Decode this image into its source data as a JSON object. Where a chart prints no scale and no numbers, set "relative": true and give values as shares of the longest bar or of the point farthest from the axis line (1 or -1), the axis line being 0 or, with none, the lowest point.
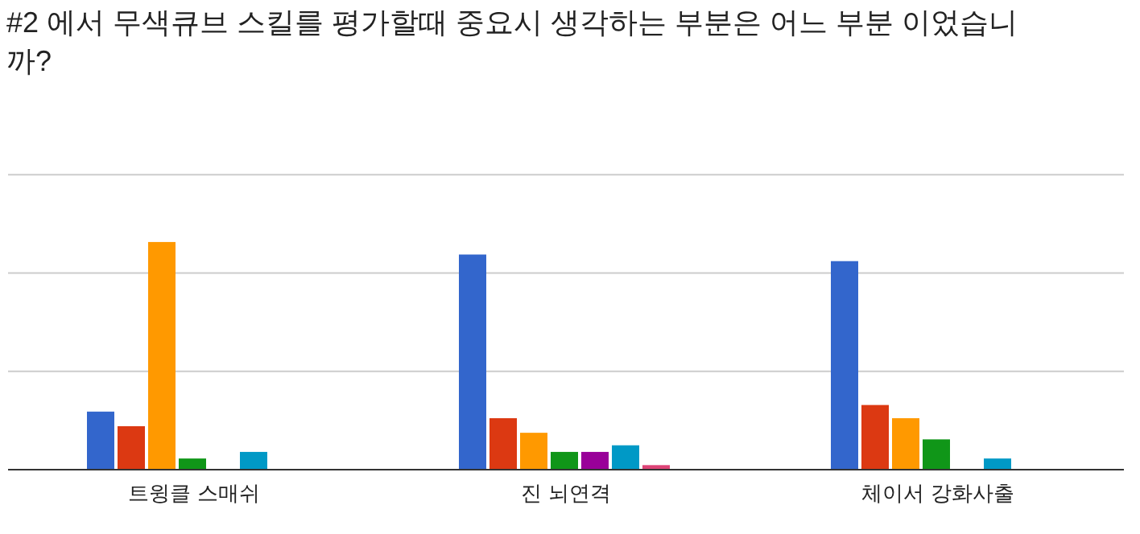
{
  "chart_data": {
    "type": "bar",
    "title": "#2 에서 무색큐브 스킬를 평가할때 중요시 생각하는 부분은 어느 부분 이었습니까?",
    "categories": [
      "트윙클 스매쉬",
      "진 뇌연격",
      "체이서 강화사출"
    ],
    "relative": true,
    "ref_lines": [
      {
        "axis": "y",
        "value": 0.432,
        "color": "#cccccc"
      },
      {
        "axis": "y",
        "value": 0.864,
        "color": "#cccccc"
      },
      {
        "axis": "y",
        "value": 1.296,
        "color": "#cccccc"
      }
    ],
    "series": [
      {
        "color": "#3366cc",
        "values": [
          0.255,
          0.945,
          0.916
        ]
      },
      {
        "color": "#dc3912",
        "values": [
          0.191,
          0.226,
          0.284
        ]
      },
      {
        "color": "#ff9900",
        "values": [
          1,
          0.162,
          0.226
        ]
      },
      {
        "color": "#109618",
        "values": [
          0.049,
          0.078,
          0.133
        ]
      },
      {
        "color": "#990099",
        "values": [
          0,
          0.078,
          0
        ]
      },
      {
        "color": "#0099c6",
        "values": [
          0.078,
          0.107,
          0.049
        ]
      },
      {
        "color": "#dd4477",
        "values": [
          0,
          0.02,
          0
        ]
      }
    ]
  }
}
